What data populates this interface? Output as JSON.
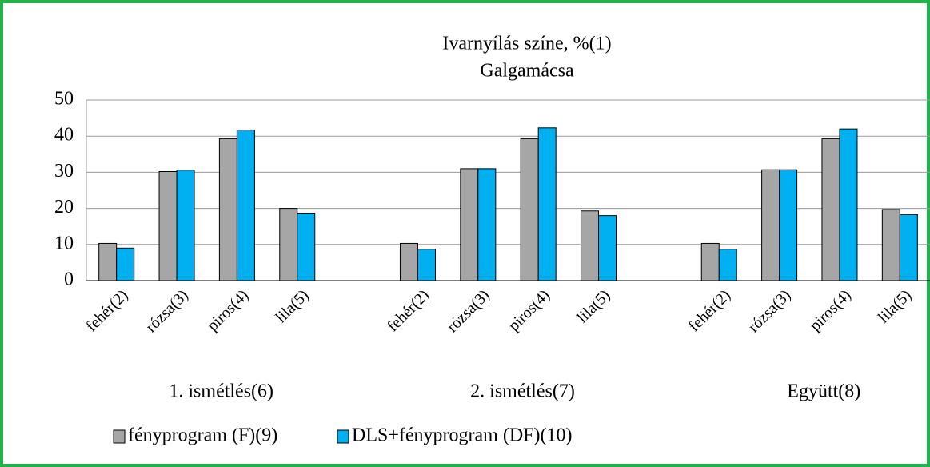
{
  "chart_data": {
    "type": "bar",
    "title": "Ivarnyílás színe, %(1)",
    "subtitle": "Galgamácsa",
    "categories": [
      "fehér(2)",
      "rózsa(3)",
      "piros(4)",
      "lila(5)",
      null,
      "fehér(2)",
      "rózsa(3)",
      "piros(4)",
      "lila(5)",
      null,
      "fehér(2)",
      "rózsa(3)",
      "piros(4)",
      "lila(5)"
    ],
    "groups": [
      "1. ismétlés(6)",
      "2. ismétlés(7)",
      "Együtt(8)"
    ],
    "series": [
      {
        "name": "fényprogram (F)(9)",
        "color": "#a6a6a6",
        "values": [
          10.3,
          30.2,
          39.3,
          20.0,
          null,
          10.3,
          31.0,
          39.3,
          19.3,
          null,
          10.3,
          30.7,
          39.3,
          19.7
        ]
      },
      {
        "name": "DLS+fényprogram (DF)(10)",
        "color": "#00b0f0",
        "values": [
          9.0,
          30.6,
          41.7,
          18.7,
          null,
          8.7,
          31.0,
          42.3,
          18.0,
          null,
          8.7,
          30.7,
          42.0,
          18.3
        ]
      }
    ],
    "ylim": [
      0,
      50
    ],
    "yticks": [
      0,
      10,
      20,
      30,
      40,
      50
    ],
    "grid": true
  }
}
